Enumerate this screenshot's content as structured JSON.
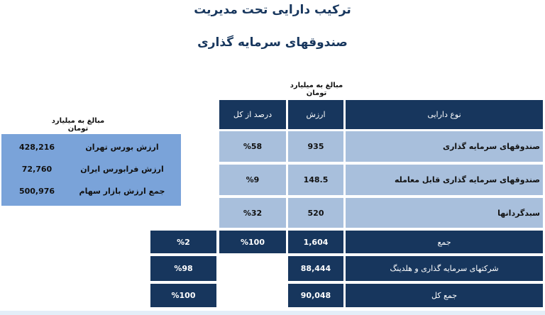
{
  "titles": {
    "main": "ترکیب دارایی تحت مدیریت",
    "sub": "صندوقهای سرمایه گذاری"
  },
  "unit_note": "مبالغ به میلیارد تومان",
  "market_table": {
    "unit_note": "مبالغ به میلیارد تومان",
    "rows": [
      {
        "label": "ارزش بورس تهران",
        "value": "428,216"
      },
      {
        "label": "ارزش فرابورس ایران",
        "value": "72,760"
      },
      {
        "label": "جمع ارزش بازار سهام",
        "value": "500,976"
      }
    ]
  },
  "asset_table": {
    "headers": {
      "type": "نوع دارایی",
      "value": "ارزش",
      "percent": "درصد از کل"
    },
    "rows": [
      {
        "type": "صندوقهای سرمایه گذاری",
        "value": "935",
        "percent": "%58"
      },
      {
        "type": "صندوقهای سرمایه گذاری قابل معامله",
        "value": "148.5",
        "percent": "%9"
      },
      {
        "type": "سبدگردانها",
        "value": "520",
        "percent": "%32"
      }
    ],
    "sum": {
      "type": "جمع",
      "value": "1,604",
      "percent": "%100",
      "share": "%2"
    },
    "holdings": {
      "type": "شرکتهای سرمایه گذاری و هلدینگ",
      "value": "88,444",
      "share": "%98"
    },
    "total": {
      "type": "جمع کل",
      "value": "90,048",
      "share": "%100"
    }
  }
}
